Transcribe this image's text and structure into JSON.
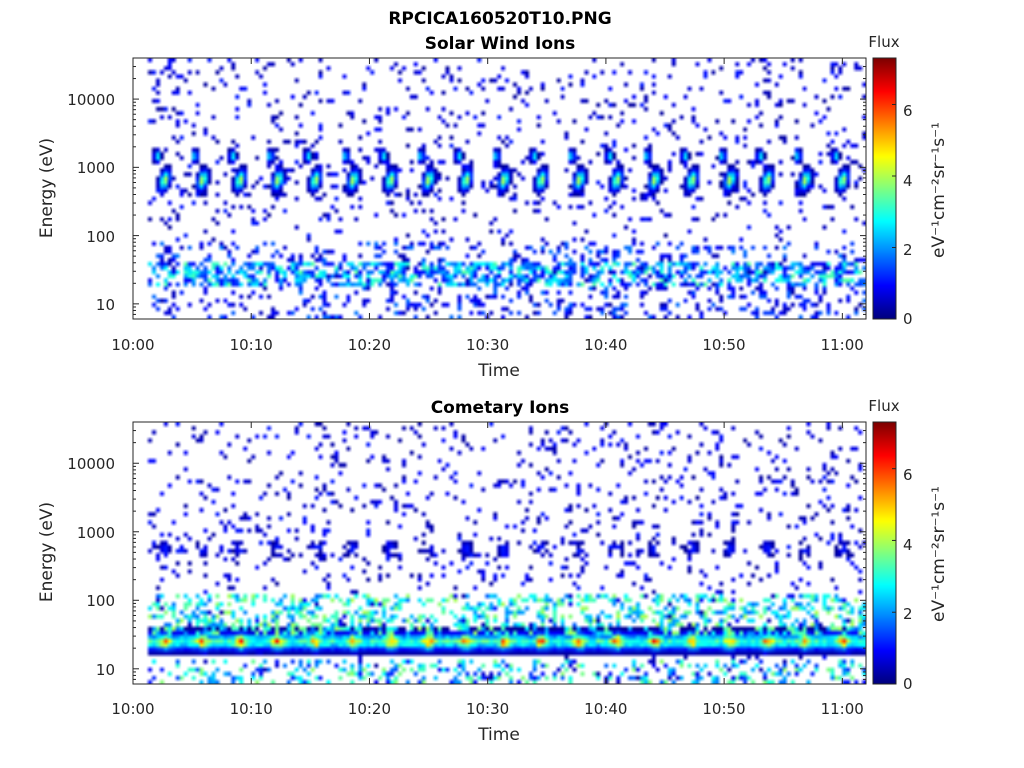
{
  "figure": {
    "title": "RPCICA160520T10.PNG"
  },
  "chart_data": [
    {
      "type": "heatmap",
      "title": "Solar Wind Ions",
      "xlabel": "Time",
      "ylabel": "Energy (eV)",
      "x_range": [
        "10:00",
        "11:02"
      ],
      "x_ticks": [
        "10:00",
        "10:10",
        "10:20",
        "10:30",
        "10:40",
        "10:50",
        "11:00"
      ],
      "y_scale": "log",
      "y_range": [
        6,
        40000
      ],
      "y_ticks": [
        10,
        100,
        1000,
        10000
      ],
      "y_tick_labels": [
        "10",
        "100",
        "1000",
        "10000"
      ],
      "colorbar": {
        "title": "Flux",
        "label": "eV⁻¹cm⁻²sr⁻¹s⁻¹",
        "range": [
          0,
          7.3
        ],
        "ticks": [
          0,
          2,
          4,
          6
        ],
        "tick_labels": [
          "0",
          "2",
          "4",
          "6"
        ],
        "colormap": "jet"
      },
      "features": {
        "peak_energy_eV": 650,
        "peak_flux": 4.2,
        "burst_period_min": 3.2,
        "data_start": "10:01",
        "data_end": "11:02"
      }
    },
    {
      "type": "heatmap",
      "title": "Cometary Ions",
      "xlabel": "Time",
      "ylabel": "Energy (eV)",
      "x_range": [
        "10:00",
        "11:02"
      ],
      "x_ticks": [
        "10:00",
        "10:10",
        "10:20",
        "10:30",
        "10:40",
        "10:50",
        "11:00"
      ],
      "y_scale": "log",
      "y_range": [
        6,
        40000
      ],
      "y_ticks": [
        10,
        100,
        1000,
        10000
      ],
      "y_tick_labels": [
        "10",
        "100",
        "1000",
        "10000"
      ],
      "colorbar": {
        "title": "Flux",
        "label": "eV⁻¹cm⁻²sr⁻¹s⁻¹",
        "range": [
          0,
          7.3
        ],
        "ticks": [
          0,
          2,
          4,
          6
        ],
        "tick_labels": [
          "0",
          "2",
          "4",
          "6"
        ],
        "colormap": "jet"
      },
      "features": {
        "peak_energy_eV": 25,
        "peak_flux": 6.0,
        "burst_period_min": 3.2,
        "data_start": "10:01",
        "data_end": "11:02"
      }
    }
  ]
}
